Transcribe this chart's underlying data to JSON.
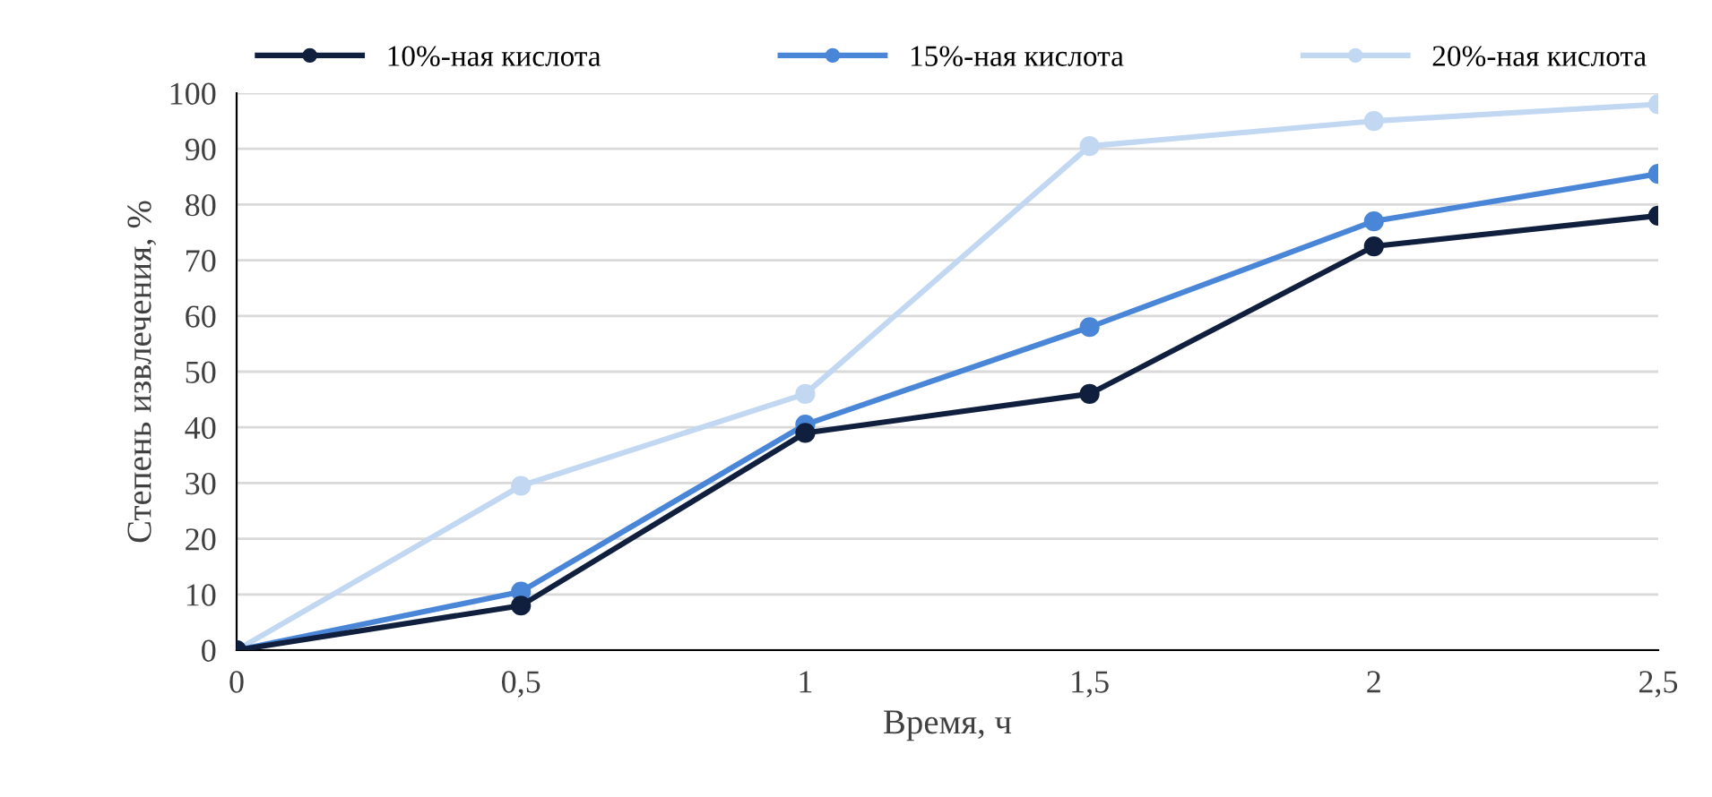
{
  "chart_data": {
    "type": "line",
    "xlabel": "Время, ч",
    "ylabel": "Степень извлечения, %",
    "x": [
      0,
      0.5,
      1,
      1.5,
      2,
      2.5
    ],
    "xlim": [
      0,
      2.5
    ],
    "xticks": [
      0,
      {
        "value": 0.5,
        "label": "0,5"
      },
      1,
      {
        "value": 1.5,
        "label": "1,5"
      },
      2,
      {
        "value": 2.5,
        "label": "2,5"
      }
    ],
    "ylim": [
      0,
      100
    ],
    "yticks": [
      0,
      10,
      20,
      30,
      40,
      50,
      60,
      70,
      80,
      90,
      100
    ],
    "grid": "y",
    "legend": "top",
    "marker": "circle",
    "line_style": "solid",
    "series": [
      {
        "name": "10%-ная кислота",
        "color": "#0f1f3d",
        "values": [
          0,
          8,
          39,
          46,
          72.5,
          78
        ]
      },
      {
        "name": "15%-ная кислота",
        "color": "#4a86d8",
        "values": [
          0,
          10.5,
          40.5,
          58,
          77,
          85.5
        ]
      },
      {
        "name": "20%-ная кислота",
        "color": "#c2d8f2",
        "values": [
          0,
          29.5,
          46,
          90.5,
          95,
          98
        ]
      }
    ]
  }
}
